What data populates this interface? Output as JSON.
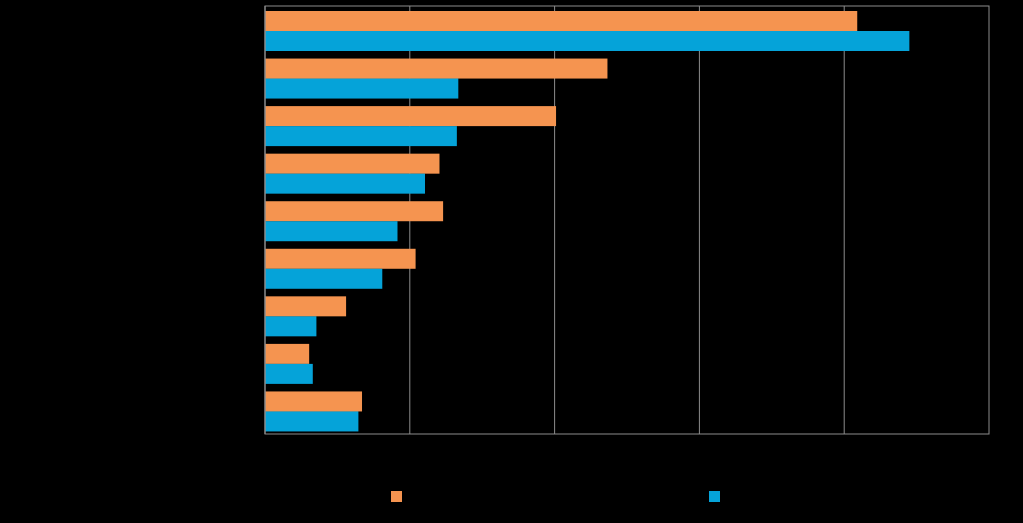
{
  "chart_data": {
    "type": "bar",
    "orientation": "horizontal",
    "title": "",
    "xlabel": "",
    "ylabel": "",
    "categories": [
      "",
      "",
      "",
      "",
      "",
      "",
      "",
      "",
      ""
    ],
    "xlim": [
      0,
      10
    ],
    "grid": true,
    "legend_position": "bottom",
    "colors": {
      "background": "#000000",
      "gridline": "#8c8c8c",
      "axis": "#8c8c8c"
    },
    "series": [
      {
        "color": "#f59450",
        "values": [
          8.18,
          4.73,
          4.02,
          2.41,
          2.46,
          2.08,
          1.12,
          0.61,
          1.34
        ]
      },
      {
        "color": "#05a3d9",
        "values": [
          8.9,
          2.67,
          2.65,
          2.21,
          1.83,
          1.62,
          0.71,
          0.66,
          1.29
        ]
      }
    ]
  }
}
